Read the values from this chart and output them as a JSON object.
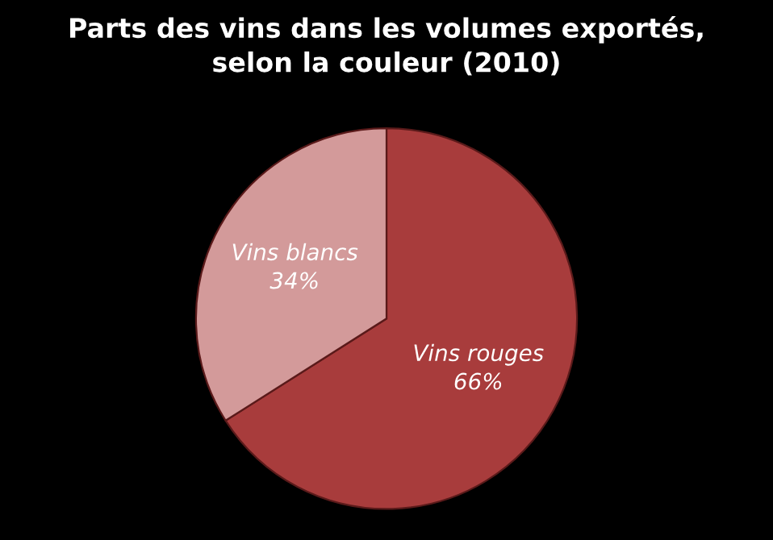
{
  "chart_data": {
    "type": "pie",
    "title": "Parts des vins dans les volumes exportés,\nselon la couleur (2010)",
    "categories": [
      "Vins rouges",
      "Vins blancs"
    ],
    "values": [
      66,
      34
    ],
    "value_labels": [
      "66%",
      "34%"
    ],
    "colors": [
      "#a83c3c",
      "#d39a9a"
    ],
    "legend": false
  }
}
